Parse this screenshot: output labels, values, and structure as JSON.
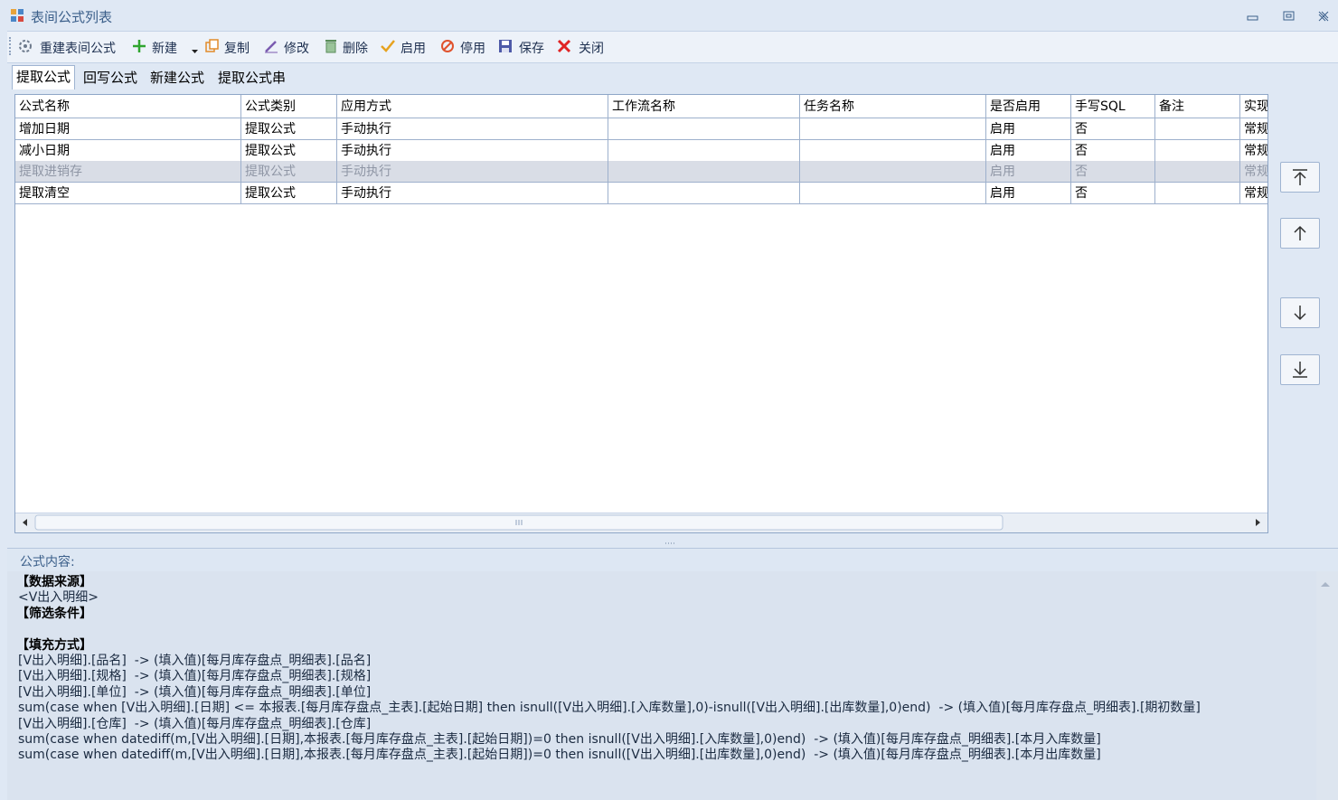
{
  "window": {
    "title": "表间公式列表"
  },
  "toolbar": [
    "重建表间公式",
    "新建",
    "复制",
    "修改",
    "删除",
    "启用",
    "停用",
    "保存",
    "关闭"
  ],
  "tabs": [
    "提取公式",
    "回写公式",
    "新建公式",
    "提取公式串"
  ],
  "table": {
    "columns": [
      "公式名称",
      "公式类别",
      "应用方式",
      "工作流名称",
      "任务名称",
      "是否启用",
      "手写SQL",
      "备注",
      "实现"
    ],
    "rows": [
      [
        "增加日期",
        "提取公式",
        "手动执行",
        null,
        null,
        "启用",
        "否",
        null,
        "常规"
      ],
      [
        "减小日期",
        "提取公式",
        "手动执行",
        null,
        null,
        "启用",
        "否",
        null,
        "常规"
      ],
      [
        "提取进销存",
        "提取公式",
        "手动执行",
        null,
        null,
        "启用",
        "否",
        null,
        "常规"
      ],
      [
        "提取清空",
        "提取公式",
        "手动执行",
        null,
        null,
        "启用",
        "否",
        null,
        "常规"
      ]
    ],
    "selected_row": 2
  },
  "formula": {
    "label": "公式内容:",
    "sections": [
      {
        "heading": "【数据来源】",
        "items": [
          "<V出入明细>"
        ]
      },
      {
        "heading": "【筛选条件】",
        "items": []
      },
      {
        "heading": "【填充方式】",
        "items": [
          "[V出入明细].[品名]  -> (填入值)[每月库存盘点_明细表].[品名]",
          "[V出入明细].[规格]  -> (填入值)[每月库存盘点_明细表].[规格]",
          "[V出入明细].[单位]  -> (填入值)[每月库存盘点_明细表].[单位]",
          "sum(case when [V出入明细].[日期] <= 本报表.[每月库存盘点_主表].[起始日期] then isnull([V出入明细].[入库数量],0)-isnull([V出入明细].[出库数量],0)end)  -> (填入值)[每月库存盘点_明细表].[期初数量]",
          "[V出入明细].[仓库]  -> (填入值)[每月库存盘点_明细表].[仓库]",
          "sum(case when datediff(m,[V出入明细].[日期],本报表.[每月库存盘点_主表].[起始日期])=0 then isnull([V出入明细].[入库数量],0)end)  -> (填入值)[每月库存盘点_明细表].[本月入库数量]",
          "sum(case when datediff(m,[V出入明细].[日期],本报表.[每月库存盘点_主表].[起始日期])=0 then isnull([V出入明细].[出库数量],0)end)  -> (填入值)[每月库存盘点_明细表].[本月出库数量]"
        ]
      }
    ]
  }
}
